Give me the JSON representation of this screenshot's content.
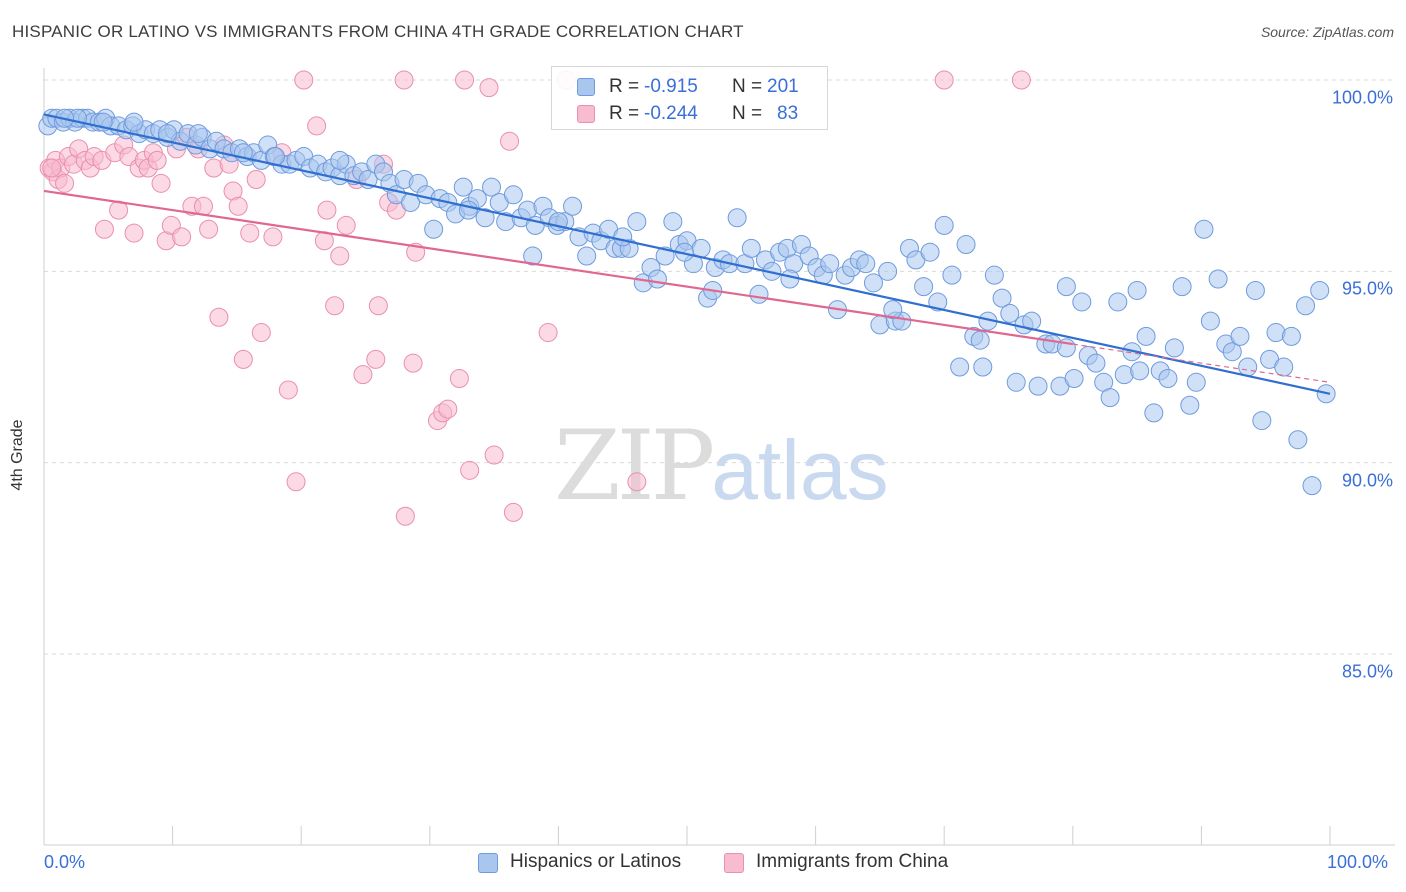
{
  "header": {
    "title": "HISPANIC OR LATINO VS IMMIGRANTS FROM CHINA 4TH GRADE CORRELATION CHART",
    "source": "Source: ZipAtlas.com"
  },
  "legend_top": {
    "rows": [
      {
        "r_label": "R =",
        "r_value": "-0.915",
        "n_label": "N =",
        "n_value": "201"
      },
      {
        "r_label": "R =",
        "r_value": "-0.244",
        "n_label": "N =",
        "n_value": "83"
      }
    ]
  },
  "legend_bottom": {
    "items": [
      {
        "label": "Hispanics or Latinos"
      },
      {
        "label": "Immigrants from China"
      }
    ]
  },
  "watermark": {
    "zip": "ZIP",
    "atlas": "atlas"
  },
  "colors": {
    "blue_fill": "#a9c6ee",
    "blue_stroke": "#6f9bdd",
    "blue_line": "#2f6fd0",
    "pink_fill": "#f7bcd0",
    "pink_stroke": "#ea8fae",
    "pink_line": "#e0678f",
    "grid": "#d9d9d9",
    "tick_text": "#3a6fd8"
  },
  "chart_data": {
    "type": "scatter",
    "title": "HISPANIC OR LATINO VS IMMIGRANTS FROM CHINA 4TH GRADE CORRELATION CHART",
    "xlabel": "",
    "ylabel": "4th Grade",
    "xlim": [
      0,
      100
    ],
    "ylim": [
      80.5,
      100.5
    ],
    "x_tick_labels": [
      "0.0%",
      "100.0%"
    ],
    "y_ticks": [
      85,
      90,
      95,
      100
    ],
    "y_tick_labels": [
      "85.0%",
      "90.0%",
      "95.0%",
      "100.0%"
    ],
    "grid": true,
    "legend_position": "bottom",
    "series": [
      {
        "name": "Hispanics or Latinos",
        "color": "#6f9bdd",
        "trend": {
          "x": [
            0,
            100
          ],
          "y": [
            99.1,
            91.8
          ]
        },
        "points": [
          [
            0.3,
            98.8
          ],
          [
            0.6,
            99.0
          ],
          [
            1.0,
            99.0
          ],
          [
            1.5,
            98.9
          ],
          [
            2.0,
            99.0
          ],
          [
            2.4,
            98.9
          ],
          [
            3.0,
            99.0
          ],
          [
            3.4,
            99.0
          ],
          [
            3.8,
            98.9
          ],
          [
            4.3,
            98.9
          ],
          [
            4.8,
            99.0
          ],
          [
            5.2,
            98.8
          ],
          [
            5.8,
            98.8
          ],
          [
            6.4,
            98.7
          ],
          [
            6.9,
            98.8
          ],
          [
            7.4,
            98.6
          ],
          [
            7.9,
            98.7
          ],
          [
            8.5,
            98.6
          ],
          [
            9.0,
            98.7
          ],
          [
            9.6,
            98.5
          ],
          [
            10.1,
            98.7
          ],
          [
            10.6,
            98.4
          ],
          [
            11.2,
            98.6
          ],
          [
            11.8,
            98.3
          ],
          [
            12.3,
            98.5
          ],
          [
            12.9,
            98.2
          ],
          [
            13.4,
            98.4
          ],
          [
            14.0,
            98.2
          ],
          [
            14.6,
            98.1
          ],
          [
            15.2,
            98.2
          ],
          [
            15.8,
            98.0
          ],
          [
            16.3,
            98.1
          ],
          [
            16.9,
            97.9
          ],
          [
            17.4,
            98.3
          ],
          [
            17.9,
            98.0
          ],
          [
            18.5,
            97.8
          ],
          [
            19.1,
            97.8
          ],
          [
            19.6,
            97.9
          ],
          [
            20.2,
            98.0
          ],
          [
            20.7,
            97.7
          ],
          [
            21.3,
            97.8
          ],
          [
            21.9,
            97.6
          ],
          [
            22.4,
            97.7
          ],
          [
            23.0,
            97.5
          ],
          [
            23.5,
            97.8
          ],
          [
            24.1,
            97.5
          ],
          [
            24.7,
            97.6
          ],
          [
            25.2,
            97.4
          ],
          [
            25.8,
            97.8
          ],
          [
            26.4,
            97.6
          ],
          [
            26.9,
            97.3
          ],
          [
            27.4,
            97.0
          ],
          [
            28.0,
            97.4
          ],
          [
            28.5,
            96.8
          ],
          [
            29.1,
            97.3
          ],
          [
            29.7,
            97.0
          ],
          [
            30.3,
            96.1
          ],
          [
            30.8,
            96.9
          ],
          [
            31.4,
            96.8
          ],
          [
            32.0,
            96.5
          ],
          [
            32.6,
            97.2
          ],
          [
            33.1,
            96.7
          ],
          [
            33.7,
            96.9
          ],
          [
            34.3,
            96.4
          ],
          [
            34.8,
            97.2
          ],
          [
            35.4,
            96.8
          ],
          [
            35.9,
            96.3
          ],
          [
            36.5,
            97.0
          ],
          [
            37.1,
            96.4
          ],
          [
            37.6,
            96.6
          ],
          [
            38.2,
            96.2
          ],
          [
            38.8,
            96.7
          ],
          [
            39.3,
            96.4
          ],
          [
            39.9,
            96.2
          ],
          [
            40.5,
            96.3
          ],
          [
            41.1,
            96.7
          ],
          [
            41.6,
            95.9
          ],
          [
            42.2,
            95.4
          ],
          [
            42.7,
            96.0
          ],
          [
            43.3,
            95.8
          ],
          [
            43.9,
            96.1
          ],
          [
            44.4,
            95.6
          ],
          [
            44.9,
            95.6
          ],
          [
            45.5,
            95.6
          ],
          [
            46.1,
            96.3
          ],
          [
            46.6,
            94.7
          ],
          [
            47.2,
            95.1
          ],
          [
            47.7,
            94.8
          ],
          [
            48.3,
            95.4
          ],
          [
            48.9,
            96.3
          ],
          [
            49.4,
            95.7
          ],
          [
            50.0,
            95.8
          ],
          [
            50.5,
            95.2
          ],
          [
            51.1,
            95.6
          ],
          [
            51.6,
            94.3
          ],
          [
            52.2,
            95.1
          ],
          [
            52.8,
            95.3
          ],
          [
            53.3,
            95.2
          ],
          [
            53.9,
            96.4
          ],
          [
            54.5,
            95.2
          ],
          [
            55.0,
            95.6
          ],
          [
            55.6,
            94.4
          ],
          [
            56.1,
            95.3
          ],
          [
            56.6,
            95.0
          ],
          [
            57.2,
            95.5
          ],
          [
            57.8,
            95.6
          ],
          [
            58.3,
            95.2
          ],
          [
            58.9,
            95.7
          ],
          [
            59.5,
            95.4
          ],
          [
            60.1,
            95.1
          ],
          [
            60.6,
            94.9
          ],
          [
            61.1,
            95.2
          ],
          [
            61.7,
            94.0
          ],
          [
            62.3,
            94.9
          ],
          [
            62.8,
            95.1
          ],
          [
            63.4,
            95.3
          ],
          [
            63.9,
            95.2
          ],
          [
            64.5,
            94.7
          ],
          [
            65.0,
            93.6
          ],
          [
            65.6,
            95.0
          ],
          [
            66.2,
            93.7
          ],
          [
            66.7,
            93.7
          ],
          [
            67.3,
            95.6
          ],
          [
            67.8,
            95.3
          ],
          [
            68.4,
            94.6
          ],
          [
            68.9,
            95.5
          ],
          [
            69.5,
            94.2
          ],
          [
            70.0,
            96.2
          ],
          [
            70.6,
            94.9
          ],
          [
            71.2,
            92.5
          ],
          [
            71.7,
            95.7
          ],
          [
            72.3,
            93.3
          ],
          [
            72.8,
            93.2
          ],
          [
            73.4,
            93.7
          ],
          [
            73.9,
            94.9
          ],
          [
            74.5,
            94.3
          ],
          [
            75.1,
            93.9
          ],
          [
            75.6,
            92.1
          ],
          [
            76.2,
            93.6
          ],
          [
            76.8,
            93.7
          ],
          [
            77.3,
            92.0
          ],
          [
            77.9,
            93.1
          ],
          [
            78.4,
            93.1
          ],
          [
            79.0,
            92.0
          ],
          [
            79.5,
            94.6
          ],
          [
            80.1,
            92.2
          ],
          [
            80.7,
            94.2
          ],
          [
            81.2,
            92.8
          ],
          [
            81.8,
            92.6
          ],
          [
            82.4,
            92.1
          ],
          [
            82.9,
            91.7
          ],
          [
            83.5,
            94.2
          ],
          [
            84.0,
            92.3
          ],
          [
            84.6,
            92.9
          ],
          [
            85.2,
            92.4
          ],
          [
            85.7,
            93.3
          ],
          [
            86.3,
            91.3
          ],
          [
            86.8,
            92.4
          ],
          [
            87.4,
            92.2
          ],
          [
            87.9,
            93.0
          ],
          [
            88.5,
            94.6
          ],
          [
            89.1,
            91.5
          ],
          [
            89.6,
            92.1
          ],
          [
            90.2,
            96.1
          ],
          [
            90.7,
            93.7
          ],
          [
            91.3,
            94.8
          ],
          [
            91.9,
            93.1
          ],
          [
            92.4,
            92.9
          ],
          [
            93.0,
            93.3
          ],
          [
            93.6,
            92.5
          ],
          [
            94.2,
            94.5
          ],
          [
            94.7,
            91.1
          ],
          [
            95.3,
            92.7
          ],
          [
            95.8,
            93.4
          ],
          [
            96.4,
            92.5
          ],
          [
            97.0,
            93.3
          ],
          [
            97.5,
            90.6
          ],
          [
            98.1,
            94.1
          ],
          [
            98.6,
            89.4
          ],
          [
            99.2,
            94.5
          ],
          [
            99.7,
            91.8
          ],
          [
            85.0,
            94.5
          ],
          [
            79.5,
            93.0
          ],
          [
            73.0,
            92.5
          ],
          [
            66.0,
            94.0
          ],
          [
            58.0,
            94.8
          ],
          [
            52.0,
            94.5
          ],
          [
            49.8,
            95.5
          ],
          [
            45.0,
            95.9
          ],
          [
            40.0,
            96.3
          ],
          [
            38.0,
            95.4
          ],
          [
            33.0,
            96.6
          ],
          [
            23.0,
            97.9
          ],
          [
            18.0,
            98.0
          ],
          [
            15.5,
            98.1
          ],
          [
            12.0,
            98.6
          ],
          [
            9.6,
            98.6
          ],
          [
            7.0,
            98.9
          ],
          [
            4.6,
            98.9
          ],
          [
            2.6,
            99.0
          ],
          [
            1.6,
            99.0
          ]
        ]
      },
      {
        "name": "Immigrants from China",
        "color": "#ea8fae",
        "trend": {
          "x": [
            0,
            80
          ],
          "y": [
            97.1,
            93.1
          ]
        },
        "points": [
          [
            0.4,
            97.7
          ],
          [
            0.7,
            97.6
          ],
          [
            0.9,
            97.9
          ],
          [
            1.1,
            97.4
          ],
          [
            1.3,
            97.7
          ],
          [
            1.6,
            97.3
          ],
          [
            1.9,
            98.0
          ],
          [
            2.3,
            97.8
          ],
          [
            2.7,
            98.2
          ],
          [
            3.2,
            97.9
          ],
          [
            3.6,
            97.7
          ],
          [
            3.9,
            98.0
          ],
          [
            4.5,
            97.9
          ],
          [
            4.7,
            96.1
          ],
          [
            5.5,
            98.1
          ],
          [
            5.8,
            96.6
          ],
          [
            6.2,
            98.3
          ],
          [
            6.6,
            98.0
          ],
          [
            7.0,
            96.0
          ],
          [
            7.4,
            97.7
          ],
          [
            7.8,
            97.9
          ],
          [
            8.1,
            97.7
          ],
          [
            8.5,
            98.1
          ],
          [
            8.8,
            97.9
          ],
          [
            9.1,
            97.3
          ],
          [
            9.5,
            95.8
          ],
          [
            9.9,
            96.2
          ],
          [
            10.3,
            98.2
          ],
          [
            10.7,
            95.9
          ],
          [
            11.1,
            98.5
          ],
          [
            11.5,
            96.7
          ],
          [
            12.0,
            98.2
          ],
          [
            12.4,
            96.7
          ],
          [
            12.8,
            96.1
          ],
          [
            13.2,
            97.7
          ],
          [
            13.6,
            93.8
          ],
          [
            14.0,
            98.3
          ],
          [
            14.4,
            97.8
          ],
          [
            14.7,
            97.1
          ],
          [
            15.1,
            96.7
          ],
          [
            15.5,
            92.7
          ],
          [
            16.0,
            96.0
          ],
          [
            16.5,
            97.4
          ],
          [
            16.9,
            93.4
          ],
          [
            17.8,
            95.9
          ],
          [
            18.5,
            98.1
          ],
          [
            19.0,
            91.9
          ],
          [
            19.6,
            89.5
          ],
          [
            20.2,
            100.0
          ],
          [
            21.2,
            98.8
          ],
          [
            21.8,
            95.8
          ],
          [
            22.0,
            96.6
          ],
          [
            22.6,
            94.1
          ],
          [
            23.0,
            95.4
          ],
          [
            23.5,
            96.2
          ],
          [
            24.3,
            97.4
          ],
          [
            24.8,
            92.3
          ],
          [
            25.8,
            92.7
          ],
          [
            26.0,
            94.1
          ],
          [
            26.4,
            97.8
          ],
          [
            26.8,
            96.8
          ],
          [
            27.4,
            96.6
          ],
          [
            28.1,
            88.6
          ],
          [
            28.7,
            92.6
          ],
          [
            28.9,
            95.5
          ],
          [
            30.6,
            91.1
          ],
          [
            31.0,
            91.3
          ],
          [
            31.4,
            91.4
          ],
          [
            32.3,
            92.2
          ],
          [
            32.7,
            100.0
          ],
          [
            33.1,
            89.8
          ],
          [
            34.6,
            99.8
          ],
          [
            35.0,
            90.2
          ],
          [
            36.2,
            98.4
          ],
          [
            36.5,
            88.7
          ],
          [
            39.2,
            93.4
          ],
          [
            40.6,
            100.0
          ],
          [
            46.1,
            89.5
          ],
          [
            49.2,
            100.0
          ],
          [
            70.0,
            100.0
          ],
          [
            76.0,
            100.0
          ],
          [
            28.0,
            100.0
          ],
          [
            0.6,
            97.7
          ]
        ]
      }
    ]
  }
}
